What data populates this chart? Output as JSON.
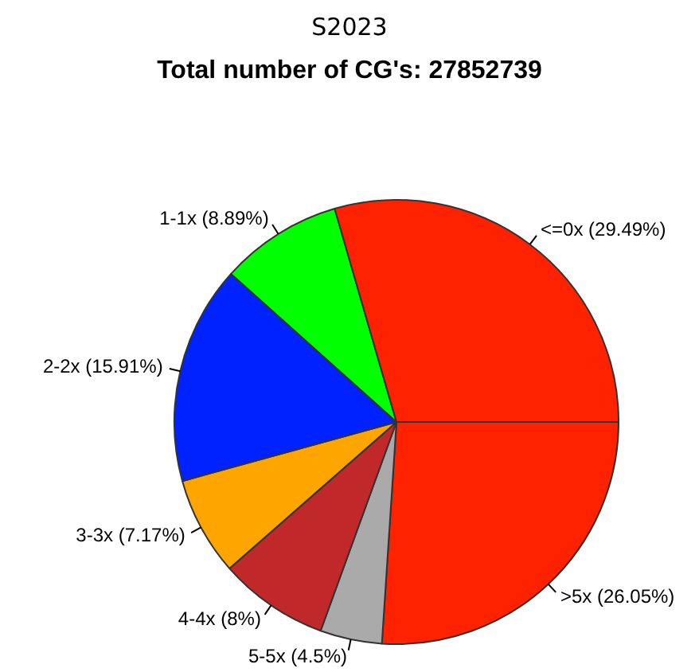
{
  "chart_data": {
    "type": "pie",
    "title": "S2023",
    "subtitle": "Total number of CG's: 27852739",
    "categories": [
      ">5x (26.05%)",
      "5-5x (4.5%)",
      "4-4x (8%)",
      "3-3x (7.17%)",
      "2-2x (15.91%)",
      "1-1x (8.89%)",
      "<=0x (29.49%)"
    ],
    "values": [
      26.05,
      4.5,
      8,
      7.17,
      15.91,
      8.89,
      29.49
    ],
    "colors": [
      "#ff2200",
      "#aaaaaa",
      "#c0282a",
      "#ffa500",
      "#0022ff",
      "#00ff00",
      "#ff2200"
    ]
  }
}
